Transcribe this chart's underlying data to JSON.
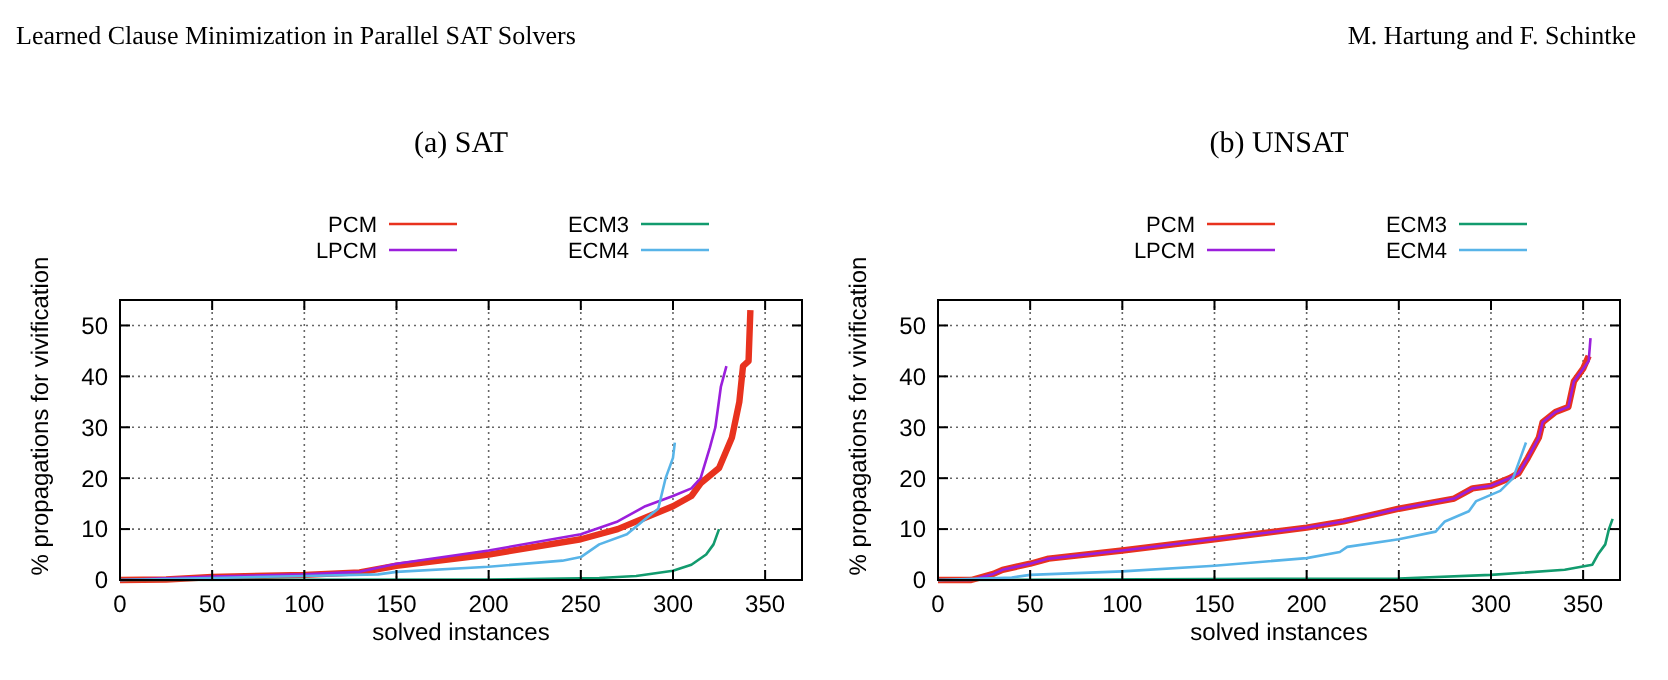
{
  "chart_data": [
    {
      "type": "line",
      "title": "(a) SAT",
      "xlabel": "solved instances",
      "ylabel": "% propagations for vivification",
      "annotations": [
        "Learned Clause Minimization in Parallel SAT Solvers"
      ],
      "xlim": [
        0,
        370
      ],
      "ylim": [
        0,
        55
      ],
      "xticks": [
        0,
        50,
        100,
        150,
        200,
        250,
        300,
        350
      ],
      "yticks": [
        0,
        10,
        20,
        30,
        40,
        50
      ],
      "grid": true,
      "legend": "top",
      "marker": "none",
      "line_style": "solid",
      "series": [
        {
          "name": "PCM",
          "color": "#e8321e",
          "x": [
            0,
            25,
            50,
            100,
            130,
            150,
            200,
            250,
            270,
            300,
            310,
            315,
            325,
            332,
            336,
            338,
            341,
            342
          ],
          "values": [
            0,
            0.1,
            0.6,
            1,
            1.5,
            2.8,
            5,
            8,
            10,
            14.5,
            16.5,
            19,
            22,
            28,
            35,
            42,
            43,
            53
          ]
        },
        {
          "name": "LPCM",
          "color": "#9b1fdc",
          "x": [
            0,
            50,
            100,
            130,
            150,
            200,
            250,
            270,
            285,
            300,
            310,
            315,
            320,
            323,
            326,
            329
          ],
          "values": [
            0,
            0.7,
            1.1,
            1.6,
            3.2,
            5.8,
            9,
            11.5,
            14.5,
            16.5,
            18,
            20,
            26,
            30,
            38,
            42
          ]
        },
        {
          "name": "ECM3",
          "color": "#129b6e",
          "x": [
            0,
            200,
            260,
            280,
            300,
            310,
            318,
            322,
            325
          ],
          "values": [
            0,
            0.1,
            0.4,
            0.8,
            1.8,
            3,
            5,
            7,
            10
          ]
        },
        {
          "name": "ECM4",
          "color": "#58b4e8",
          "x": [
            0,
            50,
            100,
            140,
            150,
            200,
            240,
            250,
            260,
            275,
            285,
            292,
            296,
            300,
            301
          ],
          "values": [
            0,
            0.4,
            0.8,
            1.1,
            1.6,
            2.6,
            3.8,
            4.5,
            7,
            9,
            12,
            14,
            20,
            24,
            27
          ]
        }
      ]
    },
    {
      "type": "line",
      "title": "(b) UNSAT",
      "xlabel": "solved instances",
      "ylabel": "% propagations for vivification",
      "annotations": [
        "M. Hartung and F. Schintke"
      ],
      "xlim": [
        0,
        370
      ],
      "ylim": [
        0,
        55
      ],
      "xticks": [
        0,
        50,
        100,
        150,
        200,
        250,
        300,
        350
      ],
      "yticks": [
        0,
        10,
        20,
        30,
        40,
        50
      ],
      "grid": true,
      "legend": "top",
      "marker": "none",
      "line_style": "solid",
      "series": [
        {
          "name": "PCM",
          "color": "#e8321e",
          "x": [
            0,
            18,
            30,
            35,
            50,
            60,
            100,
            150,
            200,
            220,
            250,
            280,
            290,
            300,
            310,
            315,
            320,
            326,
            328,
            335,
            342,
            345,
            350,
            353
          ],
          "values": [
            0,
            0,
            1.2,
            2,
            3.2,
            4.2,
            5.8,
            8,
            10.3,
            11.5,
            14,
            16,
            18,
            18.5,
            20,
            21,
            24,
            28,
            31,
            33,
            34,
            39,
            41.5,
            44
          ]
        },
        {
          "name": "LPCM",
          "color": "#9b1fdc",
          "x": [
            0,
            18,
            30,
            35,
            50,
            60,
            100,
            150,
            200,
            220,
            250,
            280,
            290,
            300,
            310,
            315,
            320,
            326,
            328,
            335,
            342,
            345,
            350,
            353,
            354
          ],
          "values": [
            0,
            0,
            1.2,
            2,
            3.2,
            4.2,
            5.8,
            8,
            10.3,
            11.5,
            14,
            16,
            18,
            18.5,
            20,
            21,
            24,
            28,
            31,
            33,
            34,
            39,
            41.5,
            43,
            47.5
          ]
        },
        {
          "name": "ECM3",
          "color": "#129b6e",
          "x": [
            0,
            250,
            300,
            340,
            355,
            358,
            362,
            364,
            366
          ],
          "values": [
            0,
            0.3,
            1,
            2,
            3,
            5,
            7,
            10,
            12
          ]
        },
        {
          "name": "ECM4",
          "color": "#58b4e8",
          "x": [
            0,
            40,
            50,
            100,
            150,
            200,
            218,
            222,
            250,
            270,
            275,
            288,
            292,
            305,
            312,
            316,
            319
          ],
          "values": [
            0,
            0.5,
            1,
            1.7,
            2.8,
            4.3,
            5.5,
            6.5,
            8,
            9.5,
            11.5,
            13.5,
            15.5,
            17.5,
            20,
            24,
            27
          ]
        }
      ]
    }
  ]
}
